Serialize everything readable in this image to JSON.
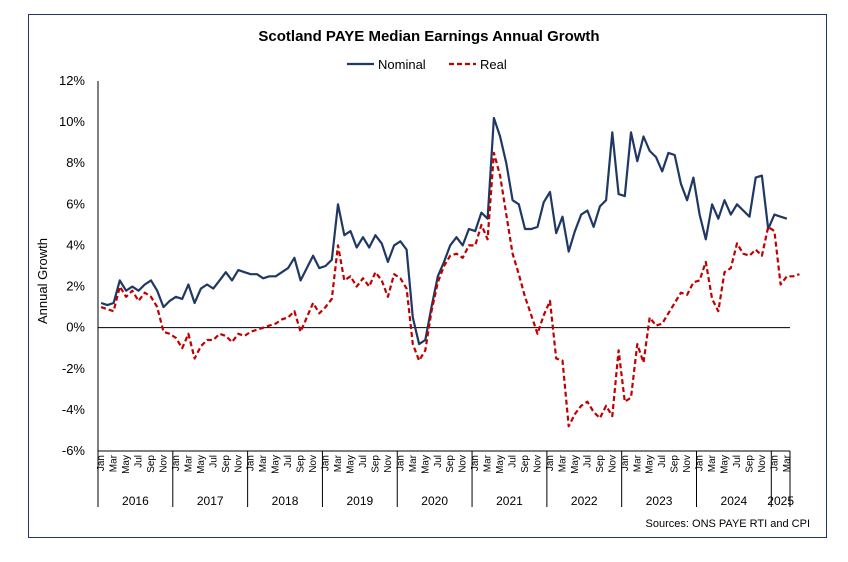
{
  "chart_data": {
    "type": "line",
    "title": "Scotland PAYE Median Earnings Annual Growth",
    "ylabel": "Annual Growth",
    "ylim": [
      -6,
      12
    ],
    "yticks": [
      "12%",
      "10%",
      "8%",
      "6%",
      "4%",
      "2%",
      "0%",
      "-2%",
      "-4%",
      "-6%"
    ],
    "yticks_values": [
      12,
      10,
      8,
      6,
      4,
      2,
      0,
      -2,
      -4,
      -6
    ],
    "month_ticks": [
      "Jan",
      "Mar",
      "May",
      "Jul",
      "Sep",
      "Nov"
    ],
    "years": [
      "2016",
      "2017",
      "2018",
      "2019",
      "2020",
      "2021",
      "2022",
      "2023",
      "2024",
      "2025"
    ],
    "x_start": "2016-01",
    "x_end": "2025-03",
    "legend_position": "top-center",
    "source": "Sources: ONS PAYE RTI and CPI",
    "series": [
      {
        "name": "Nominal",
        "color": "#1f3864",
        "style": "solid",
        "values": [
          1.2,
          1.1,
          1.2,
          2.3,
          1.8,
          2.0,
          1.8,
          2.1,
          2.3,
          1.8,
          1.0,
          1.3,
          1.5,
          1.4,
          2.1,
          1.2,
          1.9,
          2.1,
          1.9,
          2.3,
          2.7,
          2.3,
          2.8,
          2.7,
          2.6,
          2.6,
          2.4,
          2.5,
          2.5,
          2.7,
          2.9,
          3.4,
          2.3,
          2.9,
          3.5,
          2.9,
          3.0,
          3.3,
          6.0,
          4.5,
          4.7,
          3.9,
          4.4,
          3.9,
          4.5,
          4.1,
          3.2,
          4.0,
          4.2,
          3.8,
          0.5,
          -0.8,
          -0.6,
          1.0,
          2.5,
          3.2,
          4.0,
          4.4,
          4.0,
          4.8,
          4.7,
          5.6,
          5.3,
          10.2,
          9.3,
          8.0,
          6.2,
          6.0,
          4.8,
          4.8,
          4.9,
          6.1,
          6.6,
          4.6,
          5.4,
          3.7,
          4.7,
          5.5,
          5.7,
          4.9,
          5.9,
          6.2,
          9.5,
          6.5,
          6.4,
          9.5,
          8.1,
          9.3,
          8.6,
          8.3,
          7.6,
          8.5,
          8.4,
          7.0,
          6.2,
          7.3,
          5.5,
          4.3,
          6.0,
          5.3,
          6.2,
          5.5,
          6.0,
          5.7,
          5.4,
          7.3,
          7.4,
          4.8,
          5.5,
          5.4,
          5.3
        ]
      },
      {
        "name": "Real",
        "color": "#c00000",
        "style": "dashed",
        "values": [
          1.0,
          0.9,
          0.8,
          2.0,
          1.5,
          1.8,
          1.3,
          1.7,
          1.5,
          1.0,
          -0.2,
          -0.3,
          -0.5,
          -1.0,
          -0.3,
          -1.5,
          -0.9,
          -0.6,
          -0.6,
          -0.3,
          -0.4,
          -0.7,
          -0.3,
          -0.4,
          -0.2,
          -0.1,
          0.0,
          0.1,
          0.2,
          0.4,
          0.5,
          0.8,
          -0.2,
          0.5,
          1.2,
          0.7,
          1.0,
          1.4,
          4.0,
          2.3,
          2.5,
          2.0,
          2.4,
          2.0,
          2.7,
          2.3,
          1.5,
          2.6,
          2.4,
          1.9,
          -0.8,
          -1.6,
          -1.1,
          0.8,
          2.2,
          3.0,
          3.5,
          3.6,
          3.4,
          4.0,
          4.0,
          5.0,
          4.3,
          8.5,
          7.4,
          5.5,
          3.6,
          2.6,
          1.5,
          0.6,
          -0.3,
          0.6,
          1.3,
          -1.5,
          -1.6,
          -4.8,
          -4.2,
          -3.8,
          -3.6,
          -4.1,
          -4.4,
          -3.8,
          -4.3,
          -1.1,
          -3.6,
          -3.4,
          -0.8,
          -1.7,
          0.5,
          0.1,
          0.2,
          0.7,
          1.2,
          1.7,
          1.6,
          2.2,
          2.3,
          3.2,
          1.4,
          0.8,
          2.7,
          2.9,
          4.1,
          3.6,
          3.5,
          3.8,
          3.5,
          4.9,
          4.7,
          2.1,
          2.5,
          2.5,
          2.6
        ]
      }
    ]
  }
}
